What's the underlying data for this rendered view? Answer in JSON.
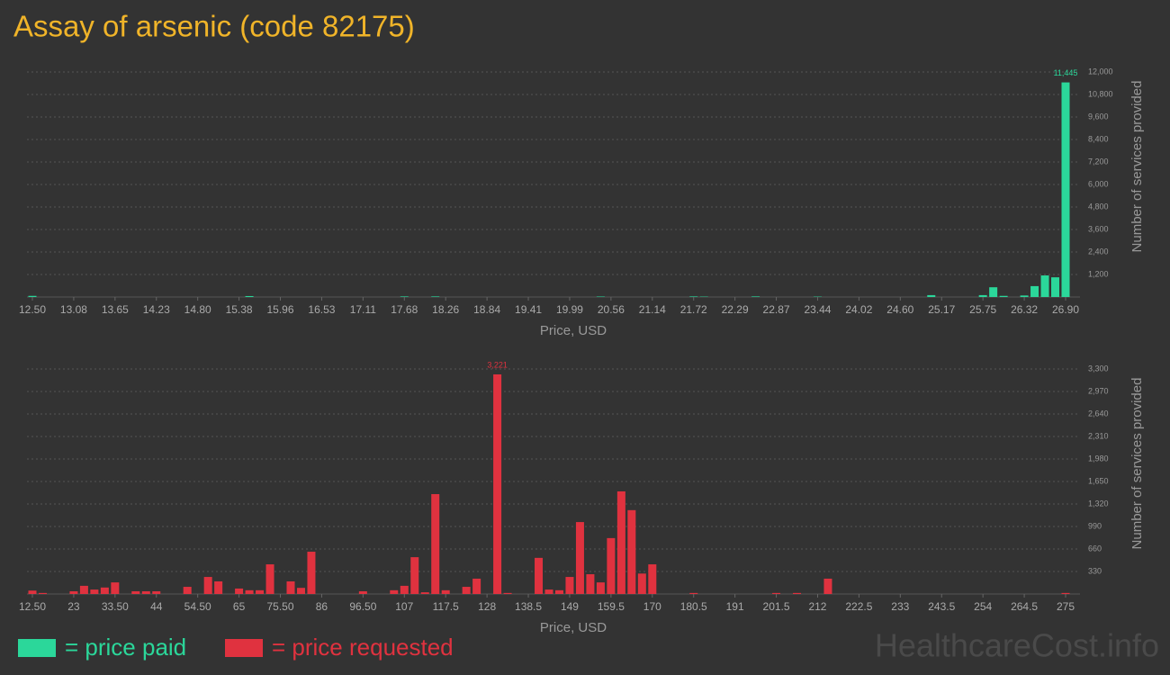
{
  "title": "Assay of arsenic (code 82175)",
  "watermark": "HealthcareCost.info",
  "chart_data": [
    {
      "type": "bar",
      "x_label": "Price, USD",
      "y_label": "Number of services provided",
      "grid": true,
      "categories": [
        "12.50",
        null,
        null,
        null,
        "13.08",
        null,
        null,
        null,
        "13.65",
        null,
        null,
        null,
        "14.23",
        null,
        null,
        null,
        "14.80",
        null,
        null,
        null,
        "15.38",
        null,
        null,
        null,
        "15.96",
        null,
        null,
        null,
        "16.53",
        null,
        null,
        null,
        "17.11",
        null,
        null,
        null,
        "17.68",
        null,
        null,
        null,
        "18.26",
        null,
        null,
        null,
        "18.84",
        null,
        null,
        null,
        "19.41",
        null,
        null,
        null,
        "19.99",
        null,
        null,
        null,
        "20.56",
        null,
        null,
        null,
        "21.14",
        null,
        null,
        null,
        "21.72",
        null,
        null,
        null,
        "22.29",
        null,
        null,
        null,
        "22.87",
        null,
        null,
        null,
        "23.44",
        null,
        null,
        null,
        "24.02",
        null,
        null,
        null,
        "24.60",
        null,
        null,
        null,
        "25.17",
        null,
        null,
        null,
        "25.75",
        null,
        null,
        null,
        "26.32",
        null,
        null,
        null,
        "26.90"
      ],
      "series": [
        {
          "name": "= price paid",
          "color": "#2bd79a",
          "values": [
            60,
            0,
            0,
            0,
            0,
            0,
            0,
            0,
            0,
            0,
            0,
            0,
            0,
            0,
            0,
            0,
            0,
            0,
            0,
            0,
            0,
            50,
            0,
            0,
            0,
            0,
            0,
            0,
            0,
            0,
            0,
            0,
            0,
            0,
            0,
            0,
            30,
            0,
            0,
            30,
            0,
            0,
            0,
            0,
            0,
            0,
            0,
            0,
            0,
            0,
            0,
            0,
            0,
            0,
            0,
            25,
            0,
            0,
            0,
            0,
            0,
            0,
            0,
            0,
            30,
            20,
            0,
            0,
            0,
            0,
            30,
            0,
            0,
            0,
            0,
            0,
            20,
            0,
            0,
            0,
            0,
            0,
            0,
            0,
            0,
            0,
            0,
            100,
            0,
            0,
            0,
            0,
            100,
            520,
            60,
            0,
            80,
            580,
            1150,
            1050,
            11445
          ],
          "value_labels": [
            null,
            null,
            null,
            null,
            null,
            null,
            null,
            null,
            null,
            null,
            null,
            null,
            null,
            null,
            null,
            null,
            null,
            null,
            null,
            null,
            null,
            null,
            null,
            null,
            null,
            null,
            null,
            null,
            null,
            null,
            null,
            null,
            null,
            null,
            null,
            null,
            null,
            null,
            null,
            null,
            null,
            null,
            null,
            null,
            null,
            null,
            null,
            null,
            null,
            null,
            null,
            null,
            null,
            null,
            null,
            null,
            null,
            null,
            null,
            null,
            null,
            null,
            null,
            null,
            null,
            null,
            null,
            null,
            null,
            null,
            null,
            null,
            null,
            null,
            null,
            null,
            null,
            null,
            null,
            null,
            null,
            null,
            null,
            null,
            null,
            null,
            null,
            null,
            null,
            null,
            null,
            null,
            null,
            null,
            null,
            null,
            null,
            null,
            null,
            null,
            "11,445"
          ]
        }
      ],
      "ylim": [
        0,
        12000
      ],
      "yticks": [
        {
          "value": 1200,
          "label": "1,200"
        },
        {
          "value": 2400,
          "label": "2,400"
        },
        {
          "value": 3600,
          "label": "3,600"
        },
        {
          "value": 4800,
          "label": "4,800"
        },
        {
          "value": 6000,
          "label": "6,000"
        },
        {
          "value": 7200,
          "label": "7,200"
        },
        {
          "value": 8400,
          "label": "8,400"
        },
        {
          "value": 9600,
          "label": "9,600"
        },
        {
          "value": 10800,
          "label": "10,800"
        },
        {
          "value": 12000,
          "label": "12,000"
        }
      ]
    },
    {
      "type": "bar",
      "x_label": "Price, USD",
      "y_label": "Number of services provided",
      "grid": true,
      "categories": [
        "12.50",
        null,
        null,
        null,
        "23",
        null,
        null,
        null,
        "33.50",
        null,
        null,
        null,
        "44",
        null,
        null,
        null,
        "54.50",
        null,
        null,
        null,
        "65",
        null,
        null,
        null,
        "75.50",
        null,
        null,
        null,
        "86",
        null,
        null,
        null,
        "96.50",
        null,
        null,
        null,
        "107",
        null,
        null,
        null,
        "117.5",
        null,
        null,
        null,
        "128",
        null,
        null,
        null,
        "138.5",
        null,
        null,
        null,
        "149",
        null,
        null,
        null,
        "159.5",
        null,
        null,
        null,
        "170",
        null,
        null,
        null,
        "180.5",
        null,
        null,
        null,
        "191",
        null,
        null,
        null,
        "201.5",
        null,
        null,
        null,
        "212",
        null,
        null,
        null,
        "222.5",
        null,
        null,
        null,
        "233",
        null,
        null,
        null,
        "243.5",
        null,
        null,
        null,
        "254",
        null,
        null,
        null,
        "264.5",
        null,
        null,
        null,
        "275"
      ],
      "series": [
        {
          "name": "= price requested",
          "color": "#e0323f",
          "values": [
            50,
            15,
            0,
            0,
            40,
            120,
            65,
            95,
            170,
            0,
            40,
            40,
            40,
            0,
            0,
            105,
            0,
            250,
            185,
            0,
            80,
            55,
            55,
            435,
            0,
            185,
            90,
            620,
            0,
            0,
            0,
            0,
            40,
            0,
            0,
            55,
            120,
            540,
            25,
            1465,
            55,
            0,
            105,
            225,
            0,
            3221,
            15,
            0,
            0,
            530,
            65,
            55,
            250,
            1055,
            290,
            170,
            820,
            1505,
            1230,
            300,
            435,
            0,
            0,
            0,
            15,
            0,
            0,
            0,
            0,
            0,
            0,
            0,
            15,
            0,
            15,
            0,
            0,
            225,
            0,
            0,
            0,
            0,
            0,
            0,
            0,
            0,
            0,
            0,
            0,
            0,
            0,
            0,
            0,
            0,
            0,
            0,
            0,
            0,
            0,
            0,
            15
          ],
          "value_labels": [
            null,
            null,
            null,
            null,
            null,
            null,
            null,
            null,
            null,
            null,
            null,
            null,
            null,
            null,
            null,
            null,
            null,
            null,
            null,
            null,
            null,
            null,
            null,
            null,
            null,
            null,
            null,
            null,
            null,
            null,
            null,
            null,
            null,
            null,
            null,
            null,
            null,
            null,
            null,
            null,
            null,
            null,
            null,
            null,
            null,
            "3,221",
            null,
            null,
            null,
            null,
            null,
            null,
            null,
            null,
            null,
            null,
            null,
            null,
            null,
            null,
            null,
            null,
            null,
            null,
            null,
            null,
            null,
            null,
            null,
            null,
            null,
            null,
            null,
            null,
            null,
            null,
            null,
            null,
            null,
            null,
            null,
            null,
            null,
            null,
            null,
            null,
            null,
            null,
            null,
            null,
            null,
            null,
            null,
            null,
            null,
            null,
            null,
            null,
            null,
            null,
            null
          ]
        }
      ],
      "ylim": [
        0,
        3300
      ],
      "yticks": [
        330,
        660,
        990,
        {
          "value": 1320,
          "label": "1,320"
        },
        {
          "value": 1650,
          "label": "1,650"
        },
        {
          "value": 1980,
          "label": "1,980"
        },
        {
          "value": 2310,
          "label": "2,310"
        },
        {
          "value": 2640,
          "label": "2,640"
        },
        {
          "value": 2970,
          "label": "2,970"
        },
        {
          "value": 3300,
          "label": "3,300"
        }
      ]
    }
  ]
}
